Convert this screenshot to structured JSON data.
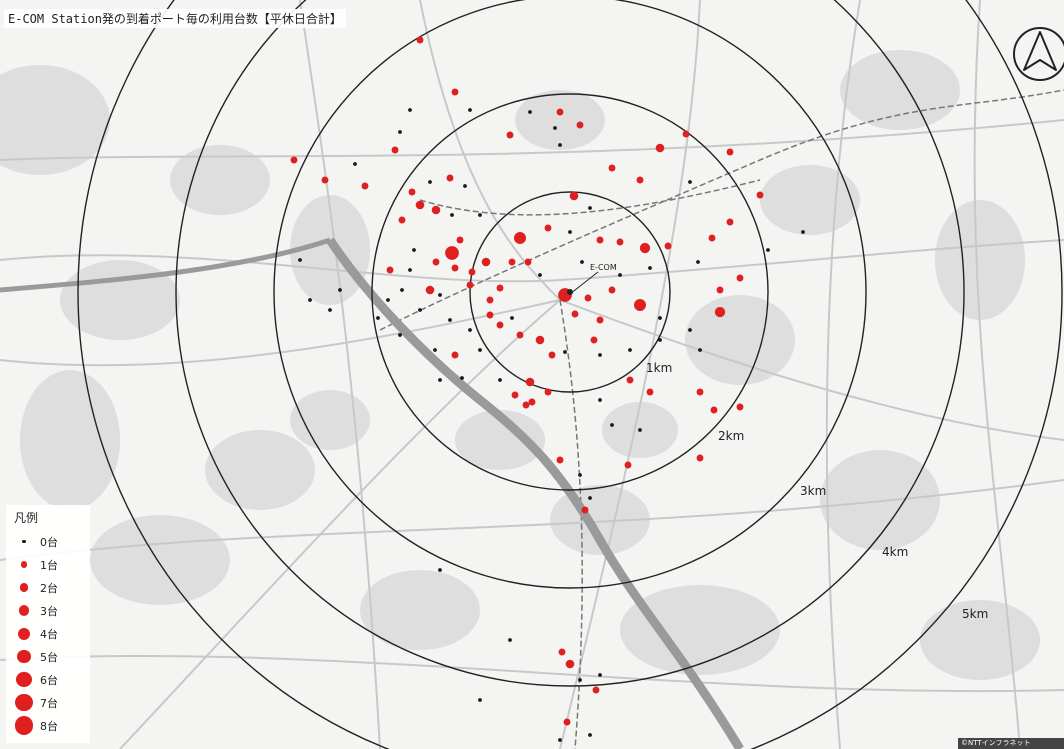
{
  "title": "E-COM Station発の到着ポート毎の利用台数【平休日合計】",
  "station": {
    "label": "E-COM"
  },
  "rings": [
    "1km",
    "2km",
    "3km",
    "4km",
    "5km"
  ],
  "legend": {
    "title": "凡例",
    "items": [
      {
        "label": "0台",
        "count": 0
      },
      {
        "label": "1台",
        "count": 1
      },
      {
        "label": "2台",
        "count": 2
      },
      {
        "label": "3台",
        "count": 3
      },
      {
        "label": "4台",
        "count": 4
      },
      {
        "label": "5台",
        "count": 5
      },
      {
        "label": "6台",
        "count": 6
      },
      {
        "label": "7台",
        "count": 7
      },
      {
        "label": "8台",
        "count": 8
      }
    ]
  },
  "colors": {
    "zero": "#1a1a1a",
    "used": "#e02020",
    "ring": "#222222",
    "road": "#c8c8c8",
    "water": "#9a9a9a",
    "rail": "#777777"
  },
  "north_arrow": "north-arrow-icon",
  "copyright": "©NTTインフラネット"
}
